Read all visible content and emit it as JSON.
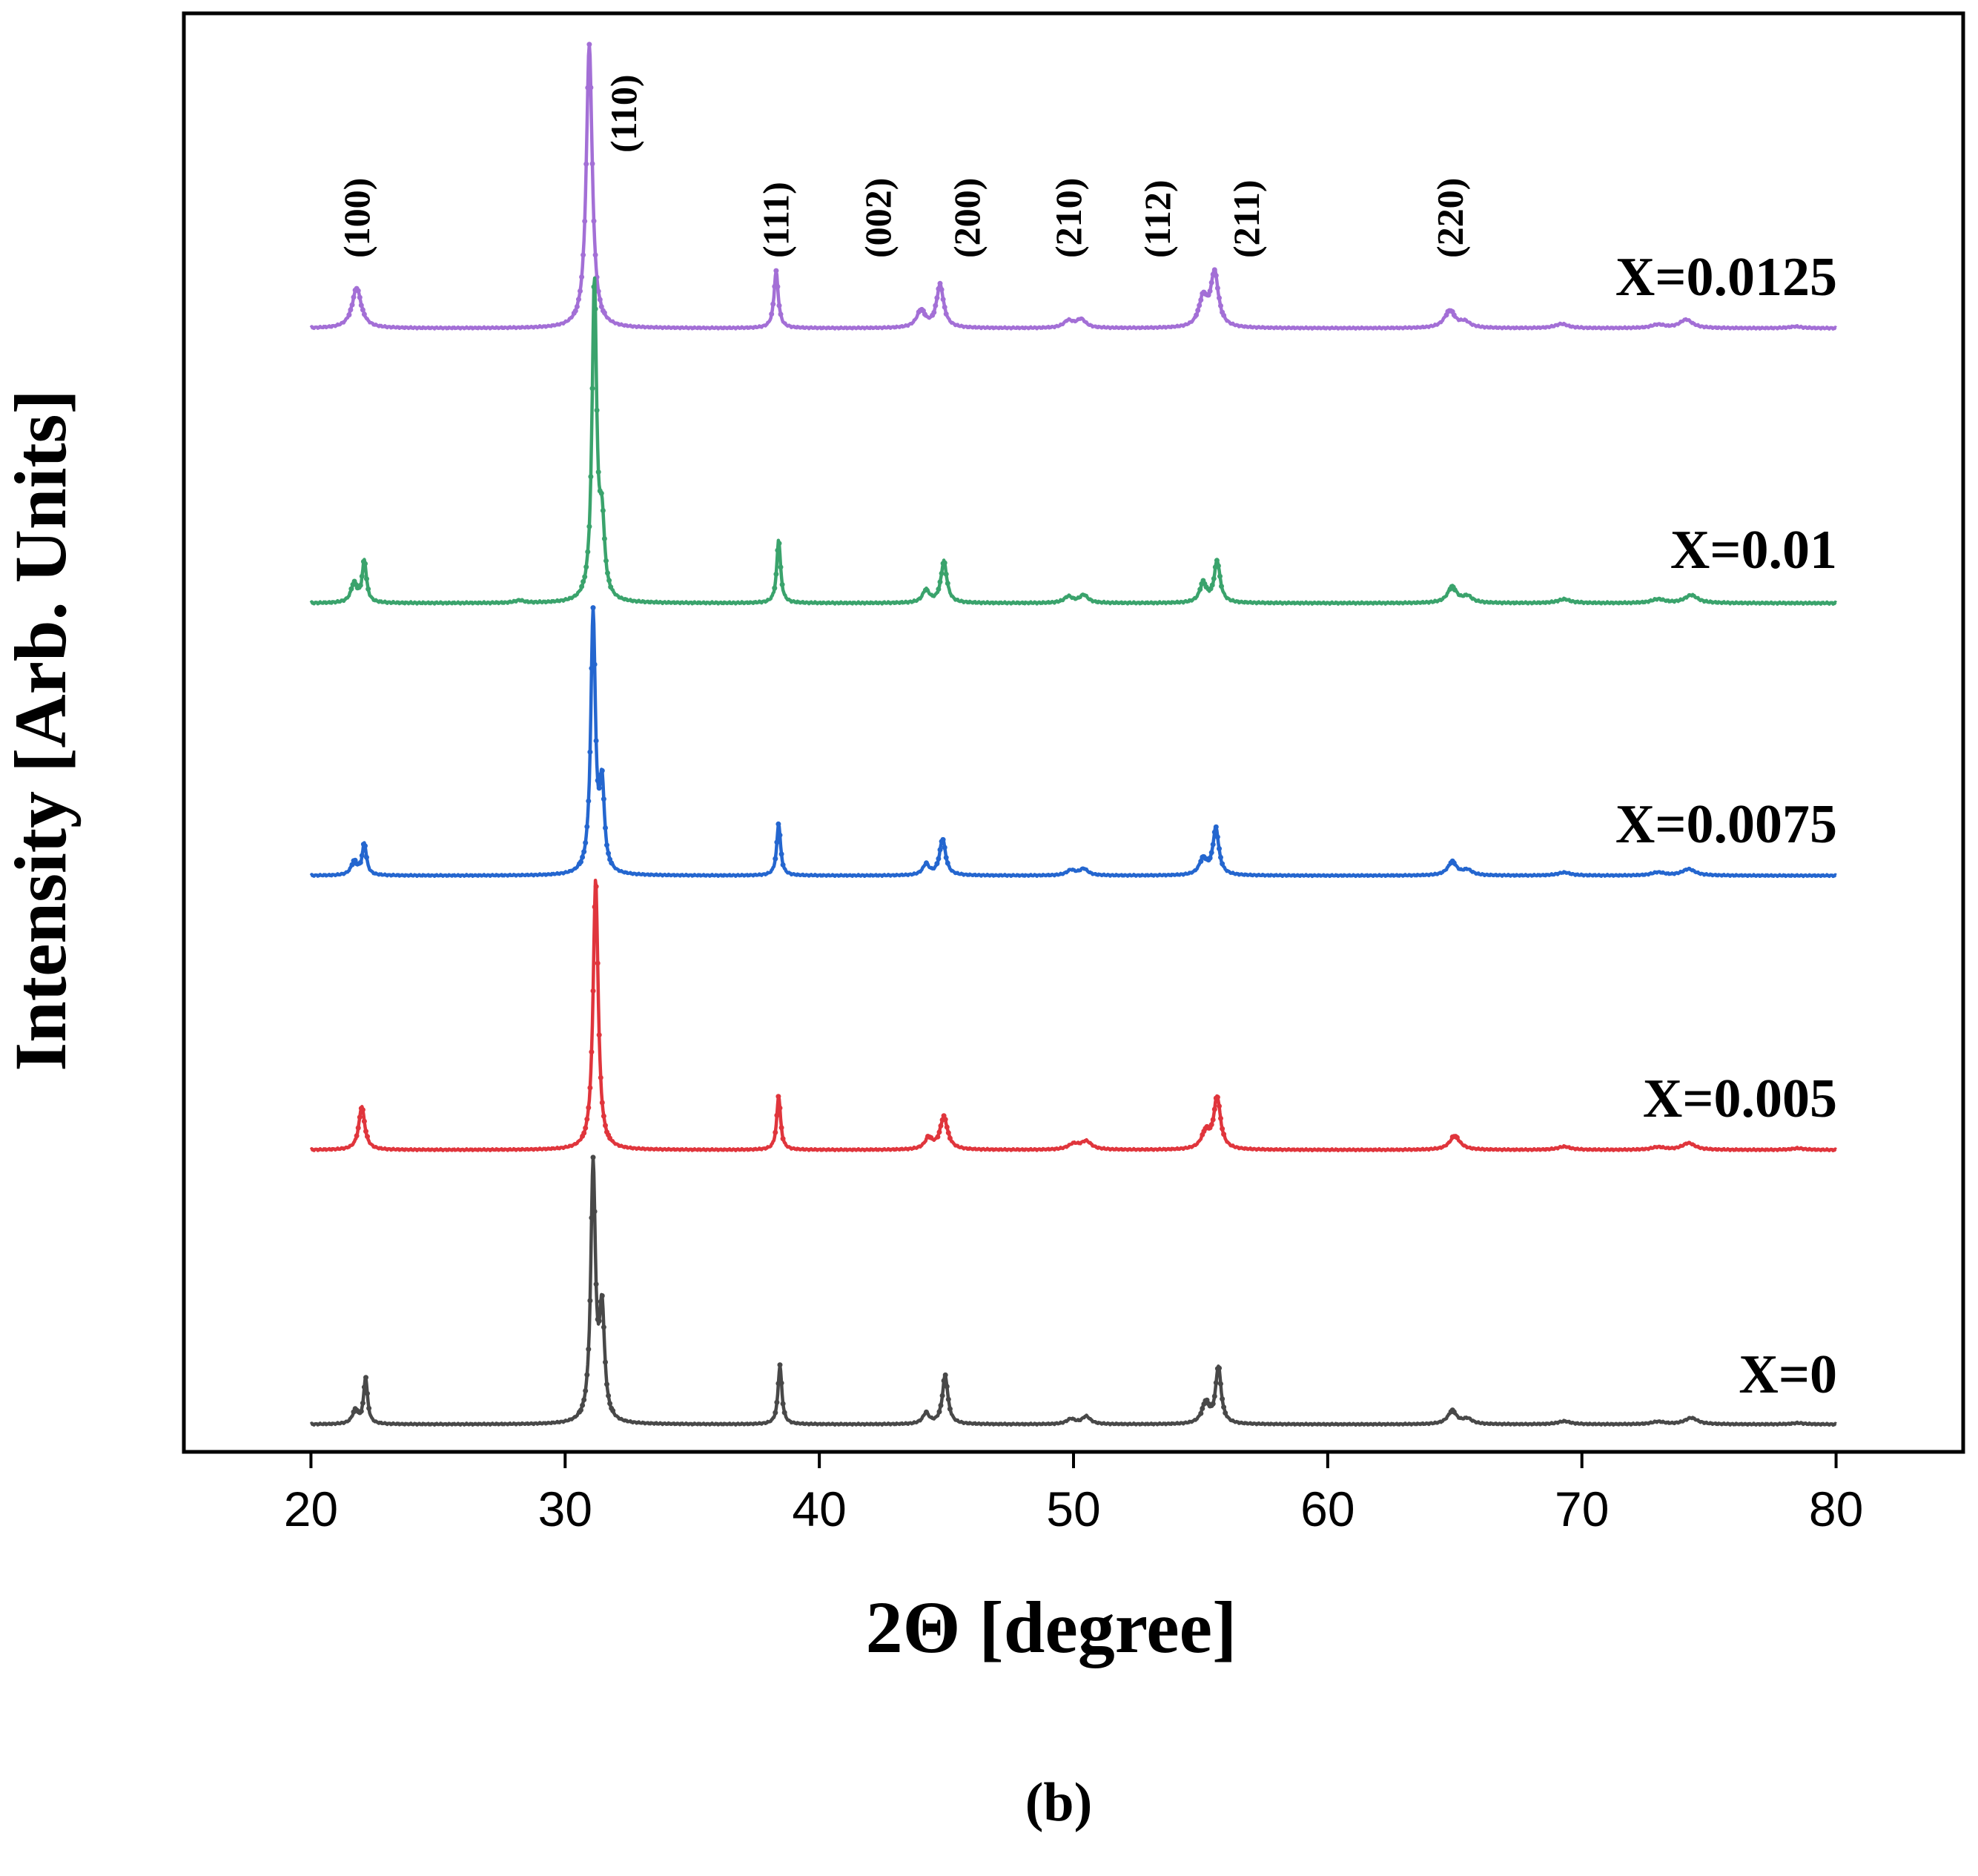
{
  "chart_data": {
    "type": "line",
    "xlabel": "2Θ [degree]",
    "ylabel": "Intensity [Arb. Units]",
    "xlim": [
      15,
      85
    ],
    "xticks": [
      20,
      30,
      40,
      50,
      60,
      70,
      80
    ],
    "xtick_labels": [
      "20",
      "30",
      "40",
      "50",
      "60",
      "70",
      "80"
    ],
    "caption": "(b)",
    "peak_labels": [
      {
        "text": "(100)",
        "x": 22
      },
      {
        "text": "(110)",
        "x": 32.5
      },
      {
        "text": "(111)",
        "x": 38.5
      },
      {
        "text": "(002)",
        "x": 42.5
      },
      {
        "text": "(200)",
        "x": 46
      },
      {
        "text": "(210)",
        "x": 50
      },
      {
        "text": "(112)",
        "x": 53.5
      },
      {
        "text": "(211)",
        "x": 57
      },
      {
        "text": "(220)",
        "x": 65
      }
    ],
    "series": [
      {
        "name": "X=0.0125",
        "color": "#a36fd6",
        "offset": 4,
        "height_scale": 1.2,
        "peaks": [
          [
            21.8,
            0.14,
            0.22
          ],
          [
            30.95,
            1.0,
            0.14
          ],
          [
            38.3,
            0.2,
            0.1
          ],
          [
            44.0,
            0.06,
            0.2
          ],
          [
            44.75,
            0.15,
            0.17
          ],
          [
            49.8,
            0.025,
            0.22
          ],
          [
            50.3,
            0.03,
            0.22
          ],
          [
            55.1,
            0.1,
            0.2
          ],
          [
            55.55,
            0.19,
            0.18
          ],
          [
            64.8,
            0.06,
            0.25
          ],
          [
            65.4,
            0.02,
            0.25
          ],
          [
            69.2,
            0.015,
            0.3
          ],
          [
            73.0,
            0.012,
            0.3
          ],
          [
            74.1,
            0.03,
            0.3
          ],
          [
            78.4,
            0.006,
            0.3
          ]
        ]
      },
      {
        "name": "X=0.01",
        "color": "#3aa36c",
        "offset": 3,
        "height_scale": 1.34,
        "peaks": [
          [
            21.7,
            0.06,
            0.15
          ],
          [
            22.1,
            0.13,
            0.1
          ],
          [
            28.2,
            0.008,
            0.2
          ],
          [
            31.15,
            1.0,
            0.11
          ],
          [
            31.45,
            0.22,
            0.12
          ],
          [
            38.4,
            0.2,
            0.09
          ],
          [
            44.2,
            0.04,
            0.16
          ],
          [
            44.9,
            0.13,
            0.14
          ],
          [
            49.8,
            0.02,
            0.2
          ],
          [
            50.4,
            0.025,
            0.2
          ],
          [
            55.1,
            0.06,
            0.16
          ],
          [
            55.65,
            0.13,
            0.14
          ],
          [
            64.9,
            0.05,
            0.22
          ],
          [
            65.5,
            0.02,
            0.22
          ],
          [
            69.3,
            0.012,
            0.3
          ],
          [
            73.0,
            0.012,
            0.3
          ],
          [
            74.3,
            0.025,
            0.3
          ]
        ]
      },
      {
        "name": "X=0.0075",
        "color": "#2466cf",
        "offset": 2,
        "height_scale": 1.1,
        "peaks": [
          [
            21.7,
            0.05,
            0.15
          ],
          [
            22.1,
            0.12,
            0.1
          ],
          [
            31.1,
            1.0,
            0.11
          ],
          [
            31.45,
            0.32,
            0.11
          ],
          [
            38.4,
            0.2,
            0.09
          ],
          [
            44.2,
            0.04,
            0.16
          ],
          [
            44.85,
            0.14,
            0.14
          ],
          [
            49.9,
            0.02,
            0.2
          ],
          [
            50.4,
            0.025,
            0.2
          ],
          [
            55.1,
            0.06,
            0.18
          ],
          [
            55.6,
            0.18,
            0.14
          ],
          [
            64.9,
            0.05,
            0.22
          ],
          [
            65.5,
            0.02,
            0.22
          ],
          [
            69.3,
            0.012,
            0.3
          ],
          [
            73.0,
            0.012,
            0.3
          ],
          [
            74.2,
            0.025,
            0.3
          ]
        ]
      },
      {
        "name": "X=0.005",
        "color": "#e0353c",
        "offset": 1,
        "height_scale": 1.14,
        "peaks": [
          [
            22.0,
            0.16,
            0.14
          ],
          [
            31.2,
            1.0,
            0.12
          ],
          [
            38.4,
            0.2,
            0.09
          ],
          [
            44.3,
            0.04,
            0.18
          ],
          [
            44.9,
            0.12,
            0.18
          ],
          [
            50.0,
            0.02,
            0.25
          ],
          [
            50.5,
            0.03,
            0.25
          ],
          [
            55.2,
            0.06,
            0.2
          ],
          [
            55.65,
            0.19,
            0.16
          ],
          [
            65.0,
            0.05,
            0.25
          ],
          [
            69.3,
            0.012,
            0.3
          ],
          [
            73.0,
            0.01,
            0.3
          ],
          [
            74.2,
            0.025,
            0.3
          ],
          [
            78.5,
            0.006,
            0.3
          ]
        ]
      },
      {
        "name": "X=0",
        "color": "#484848",
        "offset": 0,
        "height_scale": 1.08,
        "peaks": [
          [
            21.75,
            0.05,
            0.15
          ],
          [
            22.15,
            0.18,
            0.09
          ],
          [
            31.1,
            1.0,
            0.11
          ],
          [
            31.45,
            0.42,
            0.12
          ],
          [
            38.45,
            0.23,
            0.09
          ],
          [
            44.2,
            0.04,
            0.16
          ],
          [
            44.95,
            0.19,
            0.13
          ],
          [
            49.9,
            0.02,
            0.2
          ],
          [
            50.5,
            0.03,
            0.2
          ],
          [
            55.2,
            0.08,
            0.18
          ],
          [
            55.7,
            0.22,
            0.13
          ],
          [
            64.9,
            0.05,
            0.22
          ],
          [
            65.5,
            0.02,
            0.22
          ],
          [
            69.3,
            0.012,
            0.3
          ],
          [
            73.0,
            0.01,
            0.3
          ],
          [
            74.3,
            0.025,
            0.3
          ],
          [
            78.5,
            0.005,
            0.3
          ]
        ]
      }
    ]
  }
}
